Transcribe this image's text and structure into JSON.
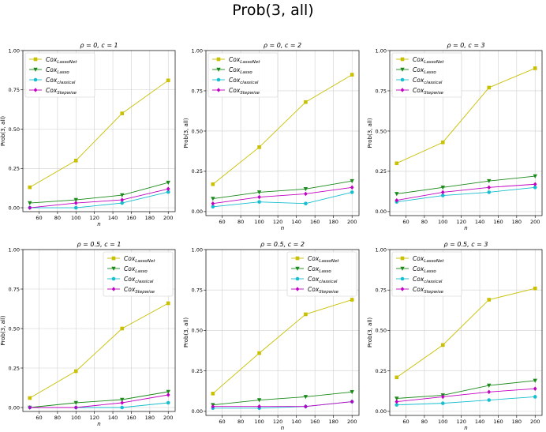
{
  "figure": {
    "title": "Prob(3, all)"
  },
  "series_styles": [
    {
      "key": "lassonet",
      "color": "#c8c000",
      "marker": "square"
    },
    {
      "key": "lasso",
      "color": "#1a8a1a",
      "marker": "triangle-down"
    },
    {
      "key": "classical",
      "color": "#17becf",
      "marker": "circle"
    },
    {
      "key": "stepwise",
      "color": "#c000c0",
      "marker": "diamond"
    }
  ],
  "chart_data": [
    {
      "type": "line",
      "title": "ρ = 0, c = 1",
      "xlabel": "n",
      "ylabel": "Prob(3, all)",
      "x": [
        50,
        100,
        150,
        200
      ],
      "xticks": [
        "60",
        "80",
        "100",
        "120",
        "140",
        "160",
        "180",
        "200"
      ],
      "yticks": [
        "0.00",
        "0.25",
        "0.50",
        "0.75",
        "1.00"
      ],
      "ylim": [
        0,
        1
      ],
      "grid": true,
      "legend": "top-left",
      "series": [
        {
          "name": "Cox",
          "sub": "LassoNet",
          "values": [
            0.13,
            0.3,
            0.6,
            0.81
          ]
        },
        {
          "name": "Cox",
          "sub": "Lasso",
          "values": [
            0.03,
            0.05,
            0.08,
            0.16
          ]
        },
        {
          "name": "Cox",
          "sub": "classical",
          "values": [
            0.0,
            0.0,
            0.03,
            0.1
          ]
        },
        {
          "name": "Cox",
          "sub": "Stepwise",
          "values": [
            0.0,
            0.03,
            0.05,
            0.12
          ]
        }
      ]
    },
    {
      "type": "line",
      "title": "ρ = 0, c = 2",
      "xlabel": "n",
      "ylabel": "Prob(3, all)",
      "x": [
        50,
        100,
        150,
        200
      ],
      "xticks": [
        "60",
        "80",
        "100",
        "120",
        "140",
        "160",
        "180",
        "200"
      ],
      "yticks": [
        "0.00",
        "0.25",
        "0.50",
        "0.75",
        "1.00"
      ],
      "ylim": [
        0,
        1
      ],
      "grid": true,
      "legend": "top-left",
      "series": [
        {
          "name": "Cox",
          "sub": "LassoNet",
          "values": [
            0.17,
            0.4,
            0.68,
            0.85
          ]
        },
        {
          "name": "Cox",
          "sub": "Lasso",
          "values": [
            0.08,
            0.12,
            0.14,
            0.19
          ]
        },
        {
          "name": "Cox",
          "sub": "classical",
          "values": [
            0.03,
            0.06,
            0.05,
            0.12
          ]
        },
        {
          "name": "Cox",
          "sub": "Stepwise",
          "values": [
            0.05,
            0.09,
            0.11,
            0.15
          ]
        }
      ]
    },
    {
      "type": "line",
      "title": "ρ = 0, c = 3",
      "xlabel": "n",
      "ylabel": "Prob(3, all)",
      "x": [
        50,
        100,
        150,
        200
      ],
      "xticks": [
        "60",
        "80",
        "100",
        "120",
        "140",
        "160",
        "180",
        "200"
      ],
      "yticks": [
        "0.00",
        "0.25",
        "0.50",
        "0.75",
        "1.00"
      ],
      "ylim": [
        0,
        1
      ],
      "grid": true,
      "legend": "top-left",
      "series": [
        {
          "name": "Cox",
          "sub": "LassoNet",
          "values": [
            0.3,
            0.43,
            0.77,
            0.89
          ]
        },
        {
          "name": "Cox",
          "sub": "Lasso",
          "values": [
            0.11,
            0.15,
            0.19,
            0.22
          ]
        },
        {
          "name": "Cox",
          "sub": "classical",
          "values": [
            0.06,
            0.1,
            0.12,
            0.15
          ]
        },
        {
          "name": "Cox",
          "sub": "Stepwise",
          "values": [
            0.07,
            0.12,
            0.15,
            0.17
          ]
        }
      ]
    },
    {
      "type": "line",
      "title": "ρ = 0.5, c = 1",
      "xlabel": "n",
      "ylabel": "Prob(3, all)",
      "x": [
        50,
        100,
        150,
        200
      ],
      "xticks": [
        "60",
        "80",
        "100",
        "120",
        "140",
        "160",
        "180",
        "200"
      ],
      "yticks": [
        "0.00",
        "0.25",
        "0.50",
        "0.75",
        "1.00"
      ],
      "ylim": [
        0,
        1
      ],
      "grid": true,
      "legend": "top-right",
      "series": [
        {
          "name": "Cox",
          "sub": "LassoNet",
          "values": [
            0.06,
            0.23,
            0.5,
            0.66
          ]
        },
        {
          "name": "Cox",
          "sub": "Lasso",
          "values": [
            0.0,
            0.03,
            0.05,
            0.1
          ]
        },
        {
          "name": "Cox",
          "sub": "classical",
          "values": [
            0.0,
            0.0,
            0.0,
            0.03
          ]
        },
        {
          "name": "Cox",
          "sub": "Stepwise",
          "values": [
            0.0,
            0.0,
            0.03,
            0.08
          ]
        }
      ]
    },
    {
      "type": "line",
      "title": "ρ = 0.5, c = 2",
      "xlabel": "n",
      "ylabel": "Prob(3, all)",
      "x": [
        50,
        100,
        150,
        200
      ],
      "xticks": [
        "60",
        "80",
        "100",
        "120",
        "140",
        "160",
        "180",
        "200"
      ],
      "yticks": [
        "0.00",
        "0.25",
        "0.50",
        "0.75",
        "1.00"
      ],
      "ylim": [
        0,
        1
      ],
      "grid": true,
      "legend": "top-right",
      "series": [
        {
          "name": "Cox",
          "sub": "LassoNet",
          "values": [
            0.11,
            0.36,
            0.6,
            0.69
          ]
        },
        {
          "name": "Cox",
          "sub": "Lasso",
          "values": [
            0.04,
            0.07,
            0.09,
            0.12
          ]
        },
        {
          "name": "Cox",
          "sub": "classical",
          "values": [
            0.02,
            0.02,
            0.03,
            0.06
          ]
        },
        {
          "name": "Cox",
          "sub": "Stepwise",
          "values": [
            0.03,
            0.03,
            0.03,
            0.06
          ]
        }
      ]
    },
    {
      "type": "line",
      "title": "ρ = 0.5, c = 3",
      "xlabel": "n",
      "ylabel": "Prob(3, all)",
      "x": [
        50,
        100,
        150,
        200
      ],
      "xticks": [
        "60",
        "80",
        "100",
        "120",
        "140",
        "160",
        "180",
        "200"
      ],
      "yticks": [
        "0.00",
        "0.25",
        "0.50",
        "0.75",
        "1.00"
      ],
      "ylim": [
        0,
        1
      ],
      "grid": true,
      "legend": "top-left",
      "series": [
        {
          "name": "Cox",
          "sub": "LassoNet",
          "values": [
            0.21,
            0.41,
            0.69,
            0.76
          ]
        },
        {
          "name": "Cox",
          "sub": "Lasso",
          "values": [
            0.08,
            0.1,
            0.16,
            0.19
          ]
        },
        {
          "name": "Cox",
          "sub": "classical",
          "values": [
            0.04,
            0.05,
            0.07,
            0.09
          ]
        },
        {
          "name": "Cox",
          "sub": "Stepwise",
          "values": [
            0.06,
            0.09,
            0.12,
            0.14
          ]
        }
      ]
    }
  ]
}
